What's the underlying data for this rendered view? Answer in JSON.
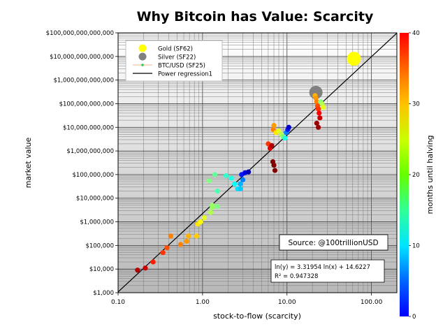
{
  "chart_data": {
    "type": "scatter",
    "title": "Why Bitcoin has Value: Scarcity",
    "xlabel": "stock-to-flow (scarcity)",
    "ylabel": "market value",
    "x_scale": "log",
    "y_scale": "log",
    "xlim": [
      0.1,
      200
    ],
    "ylim": [
      1000,
      100000000000000
    ],
    "x_ticks": [
      {
        "value": 0.1,
        "label": "0.10"
      },
      {
        "value": 1,
        "label": "1.00"
      },
      {
        "value": 10,
        "label": "10.00"
      },
      {
        "value": 100,
        "label": "100.00"
      }
    ],
    "y_ticks": [
      {
        "value": 1000,
        "label": "$1,000"
      },
      {
        "value": 10000,
        "label": "$10,000"
      },
      {
        "value": 100000,
        "label": "$100,000"
      },
      {
        "value": 1000000,
        "label": "$1,000,000"
      },
      {
        "value": 10000000,
        "label": "$10,000,000"
      },
      {
        "value": 100000000,
        "label": "$100,000,000"
      },
      {
        "value": 1000000000,
        "label": "$1,000,000,000"
      },
      {
        "value": 10000000000,
        "label": "$10,000,000,000"
      },
      {
        "value": 100000000000,
        "label": "$100,000,000,000"
      },
      {
        "value": 1000000000000,
        "label": "$1,000,000,000,000"
      },
      {
        "value": 10000000000000,
        "label": "$10,000,000,000,000"
      },
      {
        "value": 100000000000000,
        "label": "$100,000,000,000,000"
      }
    ],
    "grid": true,
    "legend_position": "top-left",
    "colorbar": {
      "label": "months until halving",
      "min": 0,
      "max": 40,
      "ticks": [
        0,
        10,
        20,
        30,
        40
      ],
      "colormap": "jet_r"
    },
    "legend": [
      {
        "label": "Gold (SF62)",
        "marker": "circle",
        "color": "#ffff00"
      },
      {
        "label": "Silver (SF22)",
        "marker": "circle",
        "color": "#808080"
      },
      {
        "label": "BTC/USD (SF25)",
        "marker": "line-dot",
        "color": "#2ecc40",
        "line_color": "#f5b38a"
      },
      {
        "label": "Power regression1",
        "marker": "line",
        "color": "#000000"
      }
    ],
    "regression": {
      "label": "Power regression1",
      "a": 3.31954,
      "b": 14.6227,
      "equation": "ln(y) = 3.31954 ln(x) + 14.6227",
      "r2": "R² = 0.947328"
    },
    "annotation": "Source: @100trillionUSD",
    "series": [
      {
        "name": "Gold (SF62)",
        "points": [
          {
            "x": 62,
            "y": 8000000000000
          }
        ],
        "color": "#ffff00",
        "size": "large"
      },
      {
        "name": "Silver (SF22)",
        "points": [
          {
            "x": 22,
            "y": 300000000000
          }
        ],
        "color": "#808080",
        "size": "large"
      },
      {
        "name": "BTC/USD (SF25)",
        "size": "small",
        "points": [
          {
            "x": 0.17,
            "y": 9000,
            "m": 38
          },
          {
            "x": 0.21,
            "y": 11000,
            "m": 37
          },
          {
            "x": 0.26,
            "y": 20000,
            "m": 34
          },
          {
            "x": 0.34,
            "y": 50000,
            "m": 33
          },
          {
            "x": 0.38,
            "y": 80000,
            "m": 32
          },
          {
            "x": 0.42,
            "y": 250000,
            "m": 30
          },
          {
            "x": 0.55,
            "y": 110000,
            "m": 30
          },
          {
            "x": 0.65,
            "y": 150000,
            "m": 29
          },
          {
            "x": 0.68,
            "y": 250000,
            "m": 28
          },
          {
            "x": 0.85,
            "y": 250000,
            "m": 27
          },
          {
            "x": 0.88,
            "y": 800000,
            "m": 26
          },
          {
            "x": 0.95,
            "y": 1000000,
            "m": 25
          },
          {
            "x": 1.05,
            "y": 1500000,
            "m": 24
          },
          {
            "x": 1.25,
            "y": 2500000,
            "m": 22
          },
          {
            "x": 1.3,
            "y": 4000000,
            "m": 21
          },
          {
            "x": 1.3,
            "y": 5000000,
            "m": 21
          },
          {
            "x": 1.5,
            "y": 4500000,
            "m": 20
          },
          {
            "x": 1.2,
            "y": 55000000,
            "m": 20
          },
          {
            "x": 1.4,
            "y": 100000000,
            "m": 19
          },
          {
            "x": 1.5,
            "y": 20000000,
            "m": 18
          },
          {
            "x": 1.9,
            "y": 90000000,
            "m": 17
          },
          {
            "x": 2.2,
            "y": 70000000,
            "m": 16
          },
          {
            "x": 2.4,
            "y": 40000000,
            "m": 15
          },
          {
            "x": 2.6,
            "y": 25000000,
            "m": 14
          },
          {
            "x": 2.8,
            "y": 25000000,
            "m": 13
          },
          {
            "x": 2.8,
            "y": 40000000,
            "m": 12
          },
          {
            "x": 3.0,
            "y": 60000000,
            "m": 10
          },
          {
            "x": 2.9,
            "y": 100000000,
            "m": 6
          },
          {
            "x": 3.2,
            "y": 120000000,
            "m": 4
          },
          {
            "x": 3.5,
            "y": 130000000,
            "m": 2
          },
          {
            "x": 6.0,
            "y": 2000000000,
            "m": 33
          },
          {
            "x": 6.3,
            "y": 1300000000,
            "m": 36
          },
          {
            "x": 6.6,
            "y": 1700000000,
            "m": 38
          },
          {
            "x": 6.8,
            "y": 350000000,
            "m": 40
          },
          {
            "x": 7.0,
            "y": 250000000,
            "m": 40
          },
          {
            "x": 7.2,
            "y": 150000000,
            "m": 40
          },
          {
            "x": 6.9,
            "y": 8000000000,
            "m": 30
          },
          {
            "x": 7.0,
            "y": 12000000000,
            "m": 29
          },
          {
            "x": 7.4,
            "y": 6000000000,
            "m": 26
          },
          {
            "x": 8.0,
            "y": 7000000000,
            "m": 24
          },
          {
            "x": 8.5,
            "y": 5000000000,
            "m": 22
          },
          {
            "x": 9.0,
            "y": 4000000000,
            "m": 20
          },
          {
            "x": 9.5,
            "y": 3500000000,
            "m": 16
          },
          {
            "x": 9.8,
            "y": 6000000000,
            "m": 10
          },
          {
            "x": 10.2,
            "y": 8000000000,
            "m": 6
          },
          {
            "x": 10.5,
            "y": 10000000000,
            "m": 3
          },
          {
            "x": 21.5,
            "y": 220000000000,
            "m": 28
          },
          {
            "x": 22.0,
            "y": 170000000000,
            "m": 29
          },
          {
            "x": 22.5,
            "y": 120000000000,
            "m": 30
          },
          {
            "x": 23.0,
            "y": 80000000000,
            "m": 32
          },
          {
            "x": 23.5,
            "y": 60000000000,
            "m": 33
          },
          {
            "x": 24.0,
            "y": 40000000000,
            "m": 35
          },
          {
            "x": 24.5,
            "y": 25000000000,
            "m": 37
          },
          {
            "x": 22.5,
            "y": 15000000000,
            "m": 39
          },
          {
            "x": 23.5,
            "y": 10000000000,
            "m": 39
          },
          {
            "x": 25.0,
            "y": 120000000000,
            "m": 20
          },
          {
            "x": 26.0,
            "y": 100000000000,
            "m": 22
          },
          {
            "x": 27.0,
            "y": 70000000000,
            "m": 24
          }
        ]
      }
    ]
  }
}
